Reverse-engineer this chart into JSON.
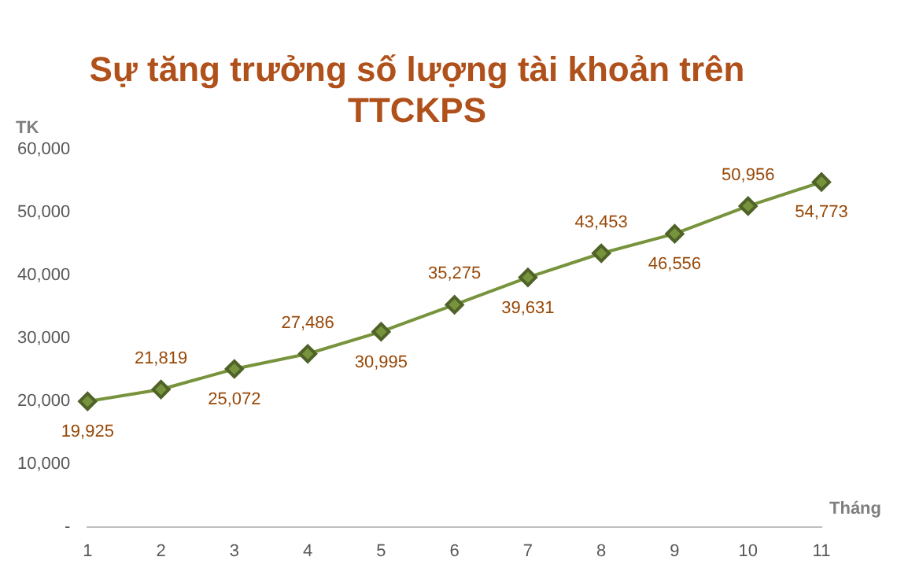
{
  "chart_data": {
    "type": "line",
    "title": "Sự tăng trưởng số lượng tài khoản trên TTCKPS",
    "xlabel": "Tháng",
    "ylabel": "TK",
    "categories": [
      "1",
      "2",
      "3",
      "4",
      "5",
      "6",
      "7",
      "8",
      "9",
      "10",
      "11"
    ],
    "series": [
      {
        "color": "#77933c",
        "values": [
          19925,
          21819,
          25072,
          27486,
          30995,
          35275,
          39631,
          43453,
          46556,
          50956,
          54773
        ],
        "value_labels": [
          "19,925",
          "21,819",
          "25,072",
          "27,486",
          "30,995",
          "35,275",
          "39,631",
          "43,453",
          "46,556",
          "50,956",
          "54,773"
        ]
      }
    ],
    "ylim": [
      0,
      60000
    ],
    "yticks": [
      {
        "value": 0,
        "label": "-"
      },
      {
        "value": 10000,
        "label": "10,000"
      },
      {
        "value": 20000,
        "label": "20,000"
      },
      {
        "value": 30000,
        "label": "30,000"
      },
      {
        "value": 40000,
        "label": "40,000"
      },
      {
        "value": 50000,
        "label": "50,000"
      },
      {
        "value": 60000,
        "label": "60,000"
      }
    ],
    "grid": false,
    "legend": false,
    "marker": "diamond",
    "line_style": "solid"
  }
}
